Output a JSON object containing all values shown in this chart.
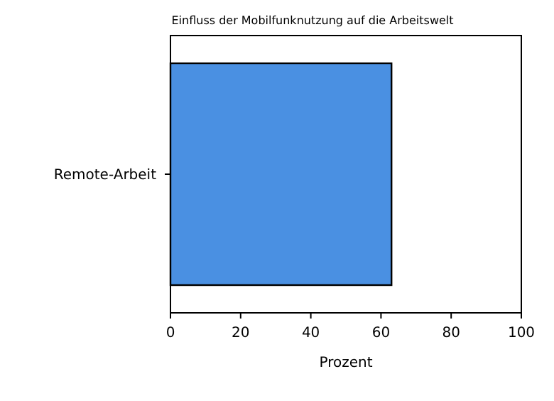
{
  "chart_data": {
    "type": "bar",
    "orientation": "horizontal",
    "title": "Einfluss der Mobilfunknutzung auf die Arbeitswelt",
    "xlabel": "Prozent",
    "categories": [
      "Remote-Arbeit"
    ],
    "values": [
      63
    ],
    "color": "#4a90e2",
    "xlim": [
      0,
      100
    ],
    "xticks": [
      0,
      20,
      40,
      60,
      80,
      100
    ],
    "grid": false
  }
}
